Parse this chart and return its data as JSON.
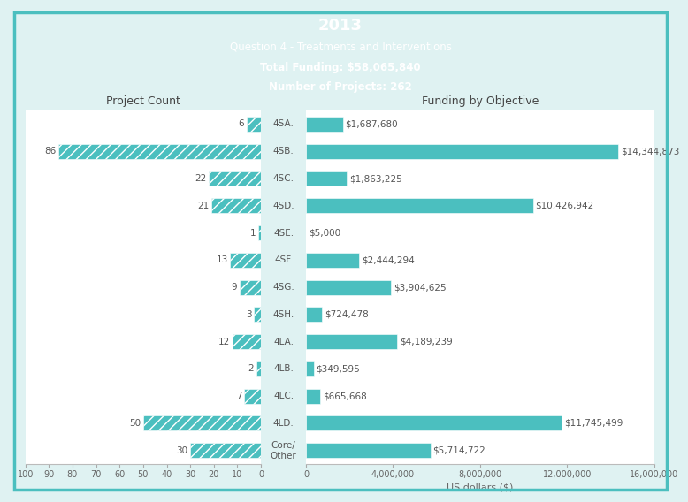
{
  "title": "2013",
  "subtitle1": "Question 4 - Treatments and Interventions",
  "subtitle2": "Total Funding: $58,065,840",
  "subtitle3": "Number of Projects: 262",
  "header_bg": "#4bbfbf",
  "chart_bg": "#ffffff",
  "outer_bg": "#dff2f2",
  "bar_color": "#4bbfbf",
  "categories": [
    "4SA.",
    "4SB.",
    "4SC.",
    "4SD.",
    "4SE.",
    "4SF.",
    "4SG.",
    "4SH.",
    "4LA.",
    "4LB.",
    "4LC.",
    "4LD.",
    "Core/\nOther"
  ],
  "project_counts": [
    6,
    86,
    22,
    21,
    1,
    13,
    9,
    3,
    12,
    2,
    7,
    50,
    30
  ],
  "funding": [
    1687680,
    14344873,
    1863225,
    10426942,
    5000,
    2444294,
    3904625,
    724478,
    4189239,
    349595,
    665668,
    11745499,
    5714722
  ],
  "funding_labels": [
    "$1,687,680",
    "$14,344,873",
    "$1,863,225",
    "$10,426,942",
    "$5,000",
    "$2,444,294",
    "$3,904,625",
    "$724,478",
    "$4,189,239",
    "$349,595",
    "$665,668",
    "$11,745,499",
    "$5,714,722"
  ],
  "xlabel": "US dollars ($)",
  "left_label": "Project Count",
  "right_label": "Funding by Objective",
  "left_ticks": [
    100,
    90,
    80,
    70,
    60,
    50,
    40,
    30,
    20,
    10,
    0
  ],
  "right_ticks": [
    0,
    4000000,
    8000000,
    12000000,
    16000000
  ],
  "right_tick_labels": [
    "0",
    "4,000,000",
    "8,000,000",
    "12,000,000",
    "16,000,000"
  ]
}
